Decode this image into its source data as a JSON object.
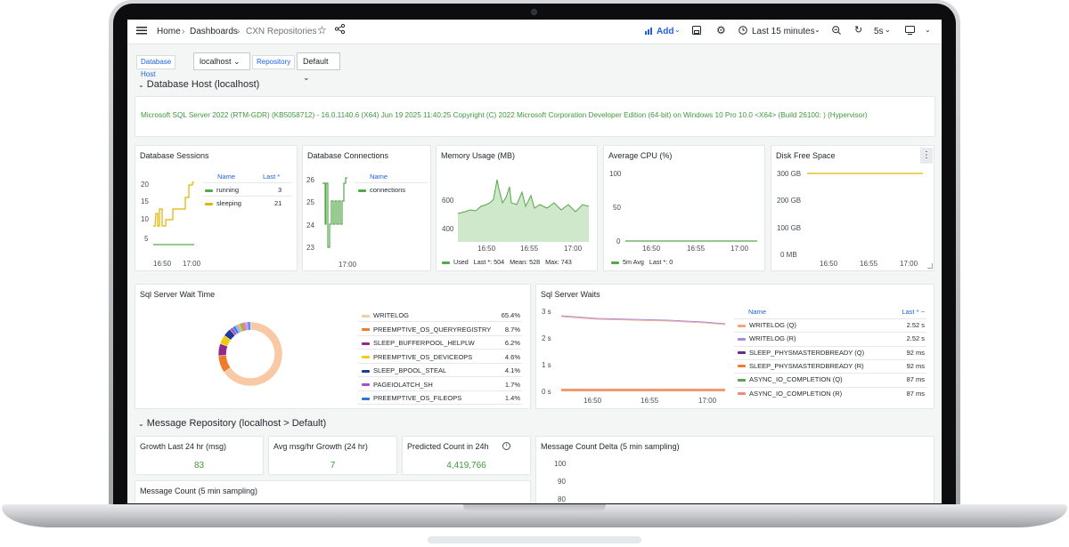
{
  "header": {
    "breadcrumb": [
      "Home",
      "Dashboards",
      "CXN Repositories"
    ],
    "add_label": "Add",
    "time_range": "Last 15 minutes",
    "refresh_interval": "5s"
  },
  "variables": [
    {
      "label": "Database Host",
      "value": "localhost"
    },
    {
      "label": "Repository",
      "value": "Default"
    }
  ],
  "rows": {
    "database_host": "Database Host (localhost)",
    "message_repository": "Message Repository (localhost > Default)"
  },
  "version_text": "Microsoft SQL Server 2022 (RTM-GDR) (KB5058712) - 16.0.1140.6 (X64) Jun 19 2025 11:40:25 Copyright (C) 2022 Microsoft Corporation Developer Edition (64-bit) on Windows 10 Pro 10.0 <X64> (Build 26100: ) (Hypervisor)",
  "panels": {
    "db_sessions": {
      "title": "Database Sessions",
      "yticks": [
        "20",
        "15",
        "10",
        "5"
      ],
      "xticks": [
        "16:50",
        "17:00"
      ],
      "legend_headers": [
        "Name",
        "Last *"
      ],
      "series": [
        {
          "name": "running",
          "last": "3",
          "color": "#56a64b"
        },
        {
          "name": "sleeping",
          "last": "21",
          "color": "#e0b400"
        }
      ]
    },
    "db_connections": {
      "title": "Database Connections",
      "yticks": [
        "26",
        "25",
        "24",
        "23"
      ],
      "xticks": [
        "17:00"
      ],
      "legend_header": "Name",
      "series": [
        {
          "name": "connections",
          "color": "#56a64b"
        }
      ]
    },
    "memory": {
      "title": "Memory Usage (MB)",
      "yticks": [
        "600",
        "400"
      ],
      "xticks": [
        "16:50",
        "16:55",
        "17:00"
      ],
      "legend": {
        "name": "Used",
        "last": "Last *: 504",
        "mean": "Mean: 528",
        "max": "Max: 743"
      }
    },
    "cpu": {
      "title": "Average CPU (%)",
      "yticks": [
        "100",
        "50",
        "0"
      ],
      "xticks": [
        "16:50",
        "16:55",
        "17:00"
      ],
      "legend": {
        "name": "5m Avg",
        "last": "Last *: 0"
      }
    },
    "disk": {
      "title": "Disk Free Space",
      "yticks": [
        "300 GB",
        "200 GB",
        "100 GB",
        "0 MB"
      ],
      "xticks": [
        "16:50",
        "16:55",
        "17:00"
      ]
    },
    "wait_time": {
      "title": "Sql Server Wait Time",
      "items": [
        {
          "name": "WRITELOG",
          "pct": "65.4%",
          "value": 65.4,
          "color": "#f9c9a6"
        },
        {
          "name": "PREEMPTIVE_OS_QUERYREGISTRY",
          "pct": "8.7%",
          "value": 8.7,
          "color": "#ef7b2b"
        },
        {
          "name": "SLEEP_BUFFERPOOL_HELPLW",
          "pct": "6.2%",
          "value": 6.2,
          "color": "#8f2b8c"
        },
        {
          "name": "PREEMPTIVE_OS_DEVICEOPS",
          "pct": "4.6%",
          "value": 4.6,
          "color": "#f2cc0c"
        },
        {
          "name": "SLEEP_BPOOL_STEAL",
          "pct": "4.1%",
          "value": 4.1,
          "color": "#1f3a93"
        },
        {
          "name": "PAGEIOLATCH_SH",
          "pct": "1.7%",
          "value": 1.7,
          "color": "#a352cc"
        },
        {
          "name": "PREEMPTIVE_OS_FILEOPS",
          "pct": "1.4%",
          "value": 1.4,
          "color": "#3274d9"
        }
      ]
    },
    "waits": {
      "title": "Sql Server Waits",
      "yticks": [
        "3 s",
        "2 s",
        "1 s",
        "0 s"
      ],
      "xticks": [
        "16:50",
        "16:55",
        "17:00"
      ],
      "legend_headers": [
        "Name",
        "Last * ~"
      ],
      "series": [
        {
          "name": "WRITELOG (Q)",
          "last": "2.52 s",
          "color": "#f9a37a"
        },
        {
          "name": "WRITELOG (R)",
          "last": "2.52 s",
          "color": "#a78bdb"
        },
        {
          "name": "SLEEP_PHYSMASTERDBREADY (Q)",
          "last": "92 ms",
          "color": "#6b2a8f"
        },
        {
          "name": "SLEEP_PHYSMASTERDBREADY (R)",
          "last": "92 ms",
          "color": "#ef7b2b"
        },
        {
          "name": "ASYNC_IO_COMPLETION (Q)",
          "last": "87 ms",
          "color": "#56a64b"
        },
        {
          "name": "ASYNC_IO_COMPLETION (R)",
          "last": "87 ms",
          "color": "#f08a7a"
        }
      ]
    },
    "growth": {
      "title": "Growth Last 24 hr (msg)",
      "value": "83"
    },
    "avg_growth": {
      "title": "Avg msg/hr Growth (24 hr)",
      "value": "7"
    },
    "predicted": {
      "title": "Predicted Count in 24h",
      "value": "4,419,766"
    },
    "delta": {
      "title": "Message Count Delta (5 min sampling)",
      "yticks": [
        "100",
        "90",
        "80"
      ]
    },
    "msg_count": {
      "title": "Message Count (5 min sampling)"
    }
  },
  "colors": {
    "accent": "#1f62e0",
    "green": "#56a64b",
    "yellow": "#e0b400"
  }
}
